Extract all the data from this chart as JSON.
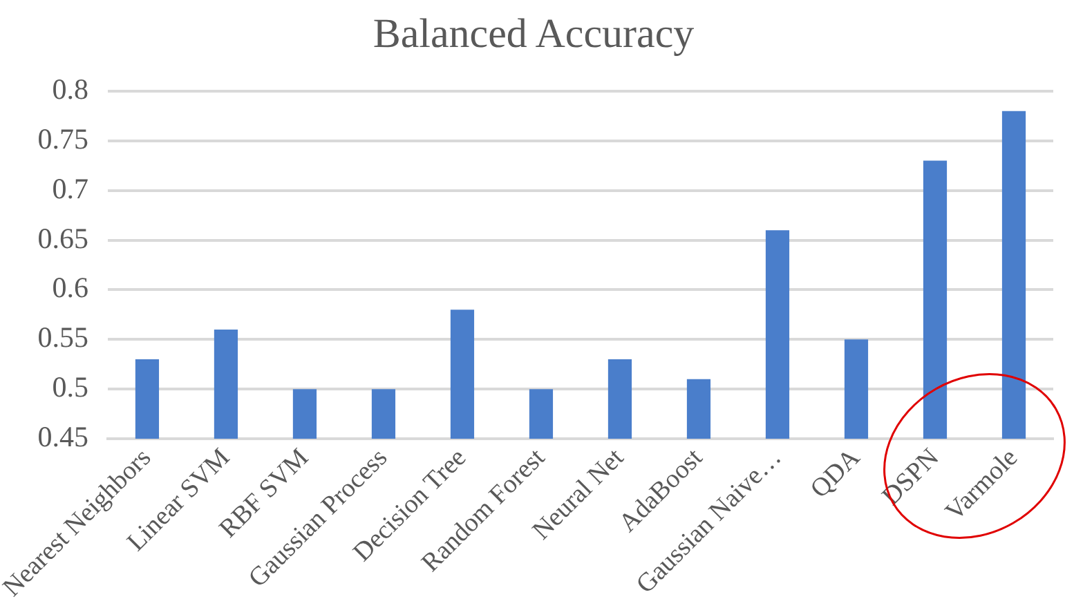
{
  "chart_data": {
    "type": "bar",
    "title": "Balanced Accuracy",
    "categories": [
      "Nearest Neighbors",
      "Linear SVM",
      "RBF SVM",
      "Gaussian Process",
      "Decision Tree",
      "Random Forest",
      "Neural Net",
      "AdaBoost",
      "Gaussian Naive…",
      "QDA",
      "DSPN",
      "Varmole"
    ],
    "values": [
      0.53,
      0.56,
      0.5,
      0.5,
      0.58,
      0.5,
      0.53,
      0.51,
      0.66,
      0.55,
      0.73,
      0.78
    ],
    "color": "#4a7ecb",
    "ylim": [
      0.45,
      0.8
    ],
    "yticks": [
      0.45,
      0.5,
      0.55,
      0.6,
      0.65,
      0.7,
      0.75,
      0.8
    ],
    "grid": "y"
  }
}
